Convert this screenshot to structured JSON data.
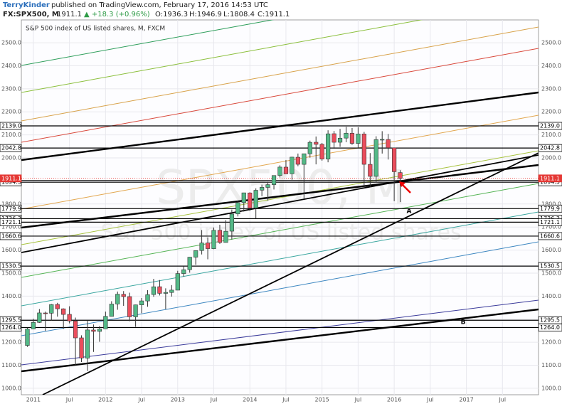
{
  "header": {
    "author": "TerryKinder",
    "published": "published on TradingView.com, February 17, 2016 14:53 UTC",
    "symbol": "FX:SPX500, M",
    "price": "1911.1",
    "change": "▲ +18.3 (+0.96%)",
    "open": "O:1936.3",
    "high": "H:1946.9",
    "low": "L:1808.4",
    "close": "C:1911.1"
  },
  "chart_data": {
    "type": "candlestick",
    "legend": "S&P 500 index of US listed shares, M, FXCM",
    "watermark": "SPX500, M",
    "watermark_subtitle": "S&P 500 index of US listed shares",
    "annotations": [
      {
        "text": "A"
      },
      {
        "text": "B"
      }
    ],
    "up_color": "#53b987",
    "down_color": "#eb4d5c",
    "x": [
      "2010-12",
      "2011-01",
      "2011-02",
      "2011-03",
      "2011-04",
      "2011-05",
      "2011-06",
      "2011-07",
      "2011-08",
      "2011-09",
      "2011-10",
      "2011-11",
      "2011-12",
      "2012-01",
      "2012-02",
      "2012-03",
      "2012-04",
      "2012-05",
      "2012-06",
      "2012-07",
      "2012-08",
      "2012-09",
      "2012-10",
      "2012-11",
      "2012-12",
      "2013-01",
      "2013-02",
      "2013-03",
      "2013-04",
      "2013-05",
      "2013-06",
      "2013-07",
      "2013-08",
      "2013-09",
      "2013-10",
      "2013-11",
      "2013-12",
      "2014-01",
      "2014-02",
      "2014-03",
      "2014-04",
      "2014-05",
      "2014-06",
      "2014-07",
      "2014-08",
      "2014-09",
      "2014-10",
      "2014-11",
      "2014-12",
      "2015-01",
      "2015-02",
      "2015-03",
      "2015-04",
      "2015-05",
      "2015-06",
      "2015-07",
      "2015-08",
      "2015-09",
      "2015-10",
      "2015-11",
      "2015-12",
      "2016-01",
      "2016-02"
    ],
    "open": [
      1186,
      1257.6,
      1286,
      1327,
      1326,
      1364,
      1345,
      1321,
      1292,
      1219,
      1131,
      1253,
      1247,
      1258,
      1312,
      1366,
      1408,
      1398,
      1310,
      1362,
      1379,
      1407,
      1441,
      1412,
      1416,
      1426,
      1498,
      1515,
      1569,
      1598,
      1631,
      1606,
      1686,
      1633,
      1682,
      1757,
      1806,
      1848,
      1783,
      1860,
      1872,
      1884,
      1924,
      1960,
      1931,
      2003,
      1972,
      2018,
      2068,
      2059,
      1995,
      2105,
      2068,
      2086,
      2107,
      2063,
      2104,
      1972,
      1920,
      2079,
      2080,
      2044,
      1936.3
    ],
    "high": [
      1263,
      1302,
      1344,
      1333,
      1366,
      1371,
      1347,
      1356,
      1307,
      1230,
      1293,
      1277,
      1270,
      1333,
      1378,
      1420,
      1422,
      1415,
      1363,
      1392,
      1426,
      1475,
      1470,
      1434,
      1448,
      1510,
      1530,
      1570,
      1598,
      1687,
      1655,
      1698,
      1710,
      1730,
      1776,
      1814,
      1849,
      1851,
      1868,
      1884,
      1897,
      1924,
      1968,
      1991,
      2005,
      2019,
      2018,
      2075,
      2093,
      2065,
      2120,
      2117,
      2126,
      2135,
      2130,
      2133,
      2113,
      2021,
      2094,
      2116,
      2104,
      2044,
      1946.9
    ],
    "low": [
      1180,
      1257,
      1284,
      1249,
      1295,
      1311,
      1258,
      1282,
      1101,
      1114,
      1075,
      1158,
      1202,
      1258,
      1312,
      1341,
      1358,
      1291,
      1267,
      1326,
      1354,
      1397,
      1403,
      1343,
      1398,
      1426,
      1485,
      1502,
      1536,
      1581,
      1560,
      1604,
      1627,
      1633,
      1646,
      1746,
      1767,
      1770,
      1737,
      1834,
      1815,
      1863,
      1915,
      1930,
      1905,
      1964,
      1821,
      2001,
      1972,
      1988,
      1981,
      2040,
      2048,
      2068,
      2057,
      2044,
      1867,
      1872,
      1893,
      2019,
      1993,
      1812,
      1808.4
    ],
    "close": [
      1257.6,
      1286.1,
      1327.2,
      1325.8,
      1363.6,
      1345.2,
      1320.6,
      1292.3,
      1218.9,
      1131.4,
      1253.3,
      1247.0,
      1257.6,
      1312.4,
      1365.7,
      1408.5,
      1397.9,
      1310.3,
      1362.2,
      1379.3,
      1406.6,
      1440.7,
      1412.2,
      1416.2,
      1426.2,
      1498.1,
      1514.7,
      1569.2,
      1597.6,
      1630.7,
      1606.3,
      1685.7,
      1633.0,
      1681.6,
      1756.5,
      1805.8,
      1848.4,
      1782.6,
      1859.5,
      1872.3,
      1883.9,
      1923.6,
      1960.2,
      1930.7,
      2003.4,
      1972.3,
      2018.1,
      2067.6,
      2058.9,
      1995.0,
      2104.5,
      2067.9,
      2085.5,
      2107.4,
      2063.1,
      2103.8,
      1972.2,
      1920.0,
      2079.4,
      2080.4,
      2043.9,
      1940.2,
      1911.1
    ],
    "xlim": [
      "2010-11",
      "2018-01"
    ],
    "xticks": [
      {
        "value": "2011-01",
        "label": "2011"
      },
      {
        "value": "2011-07",
        "label": "Jul"
      },
      {
        "value": "2012-01",
        "label": "2012"
      },
      {
        "value": "2012-07",
        "label": "Jul"
      },
      {
        "value": "2013-01",
        "label": "2013"
      },
      {
        "value": "2013-07",
        "label": "Jul"
      },
      {
        "value": "2014-01",
        "label": "2014"
      },
      {
        "value": "2014-07",
        "label": "Jul"
      },
      {
        "value": "2015-01",
        "label": "2015"
      },
      {
        "value": "2015-07",
        "label": "Jul"
      },
      {
        "value": "2016-01",
        "label": "2016"
      },
      {
        "value": "2016-07",
        "label": "Jul"
      },
      {
        "value": "2017-01",
        "label": "2017"
      },
      {
        "value": "2017-07",
        "label": "Jul"
      }
    ],
    "ylim": [
      972,
      2599
    ],
    "yticks": [
      {
        "value": 1000,
        "label": "1000.0"
      },
      {
        "value": 1100,
        "label": "1100.0"
      },
      {
        "value": 1200,
        "label": "1200.0"
      },
      {
        "value": 1300,
        "label": "1300.0"
      },
      {
        "value": 1400,
        "label": "1400.0"
      },
      {
        "value": 1500,
        "label": "1500.0"
      },
      {
        "value": 1600,
        "label": "1600.0"
      },
      {
        "value": 1700,
        "label": "1700.0"
      },
      {
        "value": 1800,
        "label": "1800.0"
      },
      {
        "value": 1900,
        "label": "1900.0"
      },
      {
        "value": 2000,
        "label": "2000.0"
      },
      {
        "value": 2100,
        "label": "2100.0"
      },
      {
        "value": 2200,
        "label": "2200.0"
      },
      {
        "value": 2300,
        "label": "2300.0"
      },
      {
        "value": 2400,
        "label": "2400.0"
      },
      {
        "value": 2500,
        "label": "2500.0"
      }
    ],
    "grid": true,
    "levels": [
      {
        "value": 2139,
        "label": "2139.0"
      },
      {
        "value": 2042.8,
        "label": "2042.8"
      },
      {
        "value": 1901.9,
        "label": "1901.9"
      },
      {
        "value": 1894.5,
        "label": "1894.5"
      },
      {
        "value": 1779.9,
        "label": "1779.9"
      },
      {
        "value": 1736.3,
        "label": "1736.3"
      },
      {
        "value": 1721.1,
        "label": "1721.1"
      },
      {
        "value": 1660.6,
        "label": "1660.6"
      },
      {
        "value": 1530.5,
        "label": "1530.5"
      },
      {
        "value": 1295.5,
        "label": "1295.5"
      },
      {
        "value": 1264,
        "label": "1264.0"
      }
    ],
    "last_price": {
      "value": 1911.1,
      "label": "1911.1",
      "color": "#e53935"
    }
  }
}
